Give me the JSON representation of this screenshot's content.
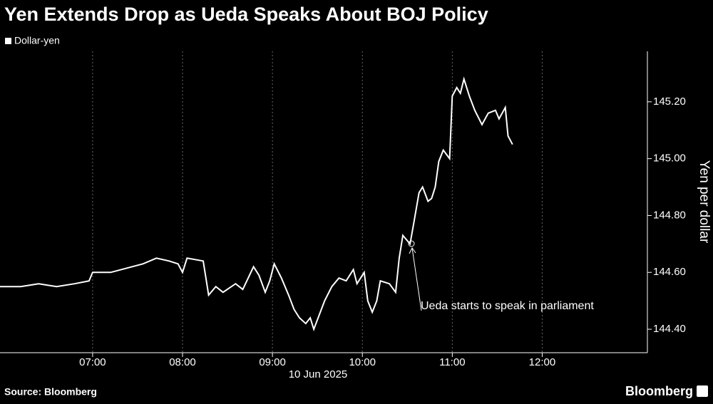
{
  "chart_data": {
    "type": "line",
    "title": "Yen Extends Drop as Ueda Speaks About BOJ Policy",
    "x_label": "10 Jun 2025",
    "y_label": "Yen per dollar",
    "source": "Source: Bloomberg",
    "brand": "Bloomberg",
    "annotation": "Ueda starts to speak in parliament",
    "xlim": [
      5.97,
      13.17
    ],
    "xticks": [
      {
        "value": 7,
        "label": "07:00"
      },
      {
        "value": 8,
        "label": "08:00"
      },
      {
        "value": 9,
        "label": "09:00"
      },
      {
        "value": 10,
        "label": "10:00"
      },
      {
        "value": 11,
        "label": "11:00"
      },
      {
        "value": 12,
        "label": "12:00"
      }
    ],
    "ylim": [
      144.3175,
      145.3775
    ],
    "yticks": [
      {
        "value": 144.4,
        "label": "144.40"
      },
      {
        "value": 144.6,
        "label": "144.60"
      },
      {
        "value": 144.8,
        "label": "144.80"
      },
      {
        "value": 145.0,
        "label": "145.00"
      },
      {
        "value": 145.2,
        "label": "145.20"
      }
    ],
    "x": [
      5.97,
      6.2,
      6.4,
      6.6,
      6.8,
      6.96,
      7.0,
      7.2,
      7.44,
      7.56,
      7.71,
      7.85,
      7.95,
      8.0,
      8.05,
      8.23,
      8.29,
      8.37,
      8.45,
      8.59,
      8.67,
      8.73,
      8.79,
      8.85,
      8.92,
      8.97,
      9.02,
      9.1,
      9.18,
      9.24,
      9.3,
      9.37,
      9.42,
      9.46,
      9.52,
      9.58,
      9.66,
      9.74,
      9.82,
      9.9,
      9.94,
      10.02,
      10.06,
      10.11,
      10.16,
      10.2,
      10.3,
      10.37,
      10.41,
      10.45,
      10.53,
      10.57,
      10.63,
      10.67,
      10.73,
      10.77,
      10.81,
      10.85,
      10.9,
      10.97,
      11.0,
      11.05,
      11.09,
      11.13,
      11.19,
      11.25,
      11.33,
      11.4,
      11.48,
      11.52,
      11.59,
      11.62,
      11.67
    ],
    "series": [
      {
        "name": "Dollar-yen",
        "color": "#ffffff",
        "values": [
          144.55,
          144.55,
          144.56,
          144.55,
          144.56,
          144.57,
          144.6,
          144.6,
          144.62,
          144.63,
          144.65,
          144.64,
          144.63,
          144.6,
          144.65,
          144.64,
          144.52,
          144.55,
          144.53,
          144.56,
          144.54,
          144.58,
          144.62,
          144.59,
          144.53,
          144.57,
          144.63,
          144.58,
          144.52,
          144.47,
          144.44,
          144.42,
          144.44,
          144.4,
          144.45,
          144.5,
          144.55,
          144.58,
          144.57,
          144.61,
          144.56,
          144.6,
          144.5,
          144.46,
          144.5,
          144.57,
          144.56,
          144.53,
          144.65,
          144.73,
          144.7,
          144.77,
          144.88,
          144.9,
          144.85,
          144.86,
          144.9,
          144.99,
          145.03,
          145.0,
          145.22,
          145.25,
          145.23,
          145.28,
          145.22,
          145.17,
          145.12,
          145.16,
          145.17,
          145.14,
          145.18,
          145.08,
          145.05
        ]
      }
    ]
  }
}
